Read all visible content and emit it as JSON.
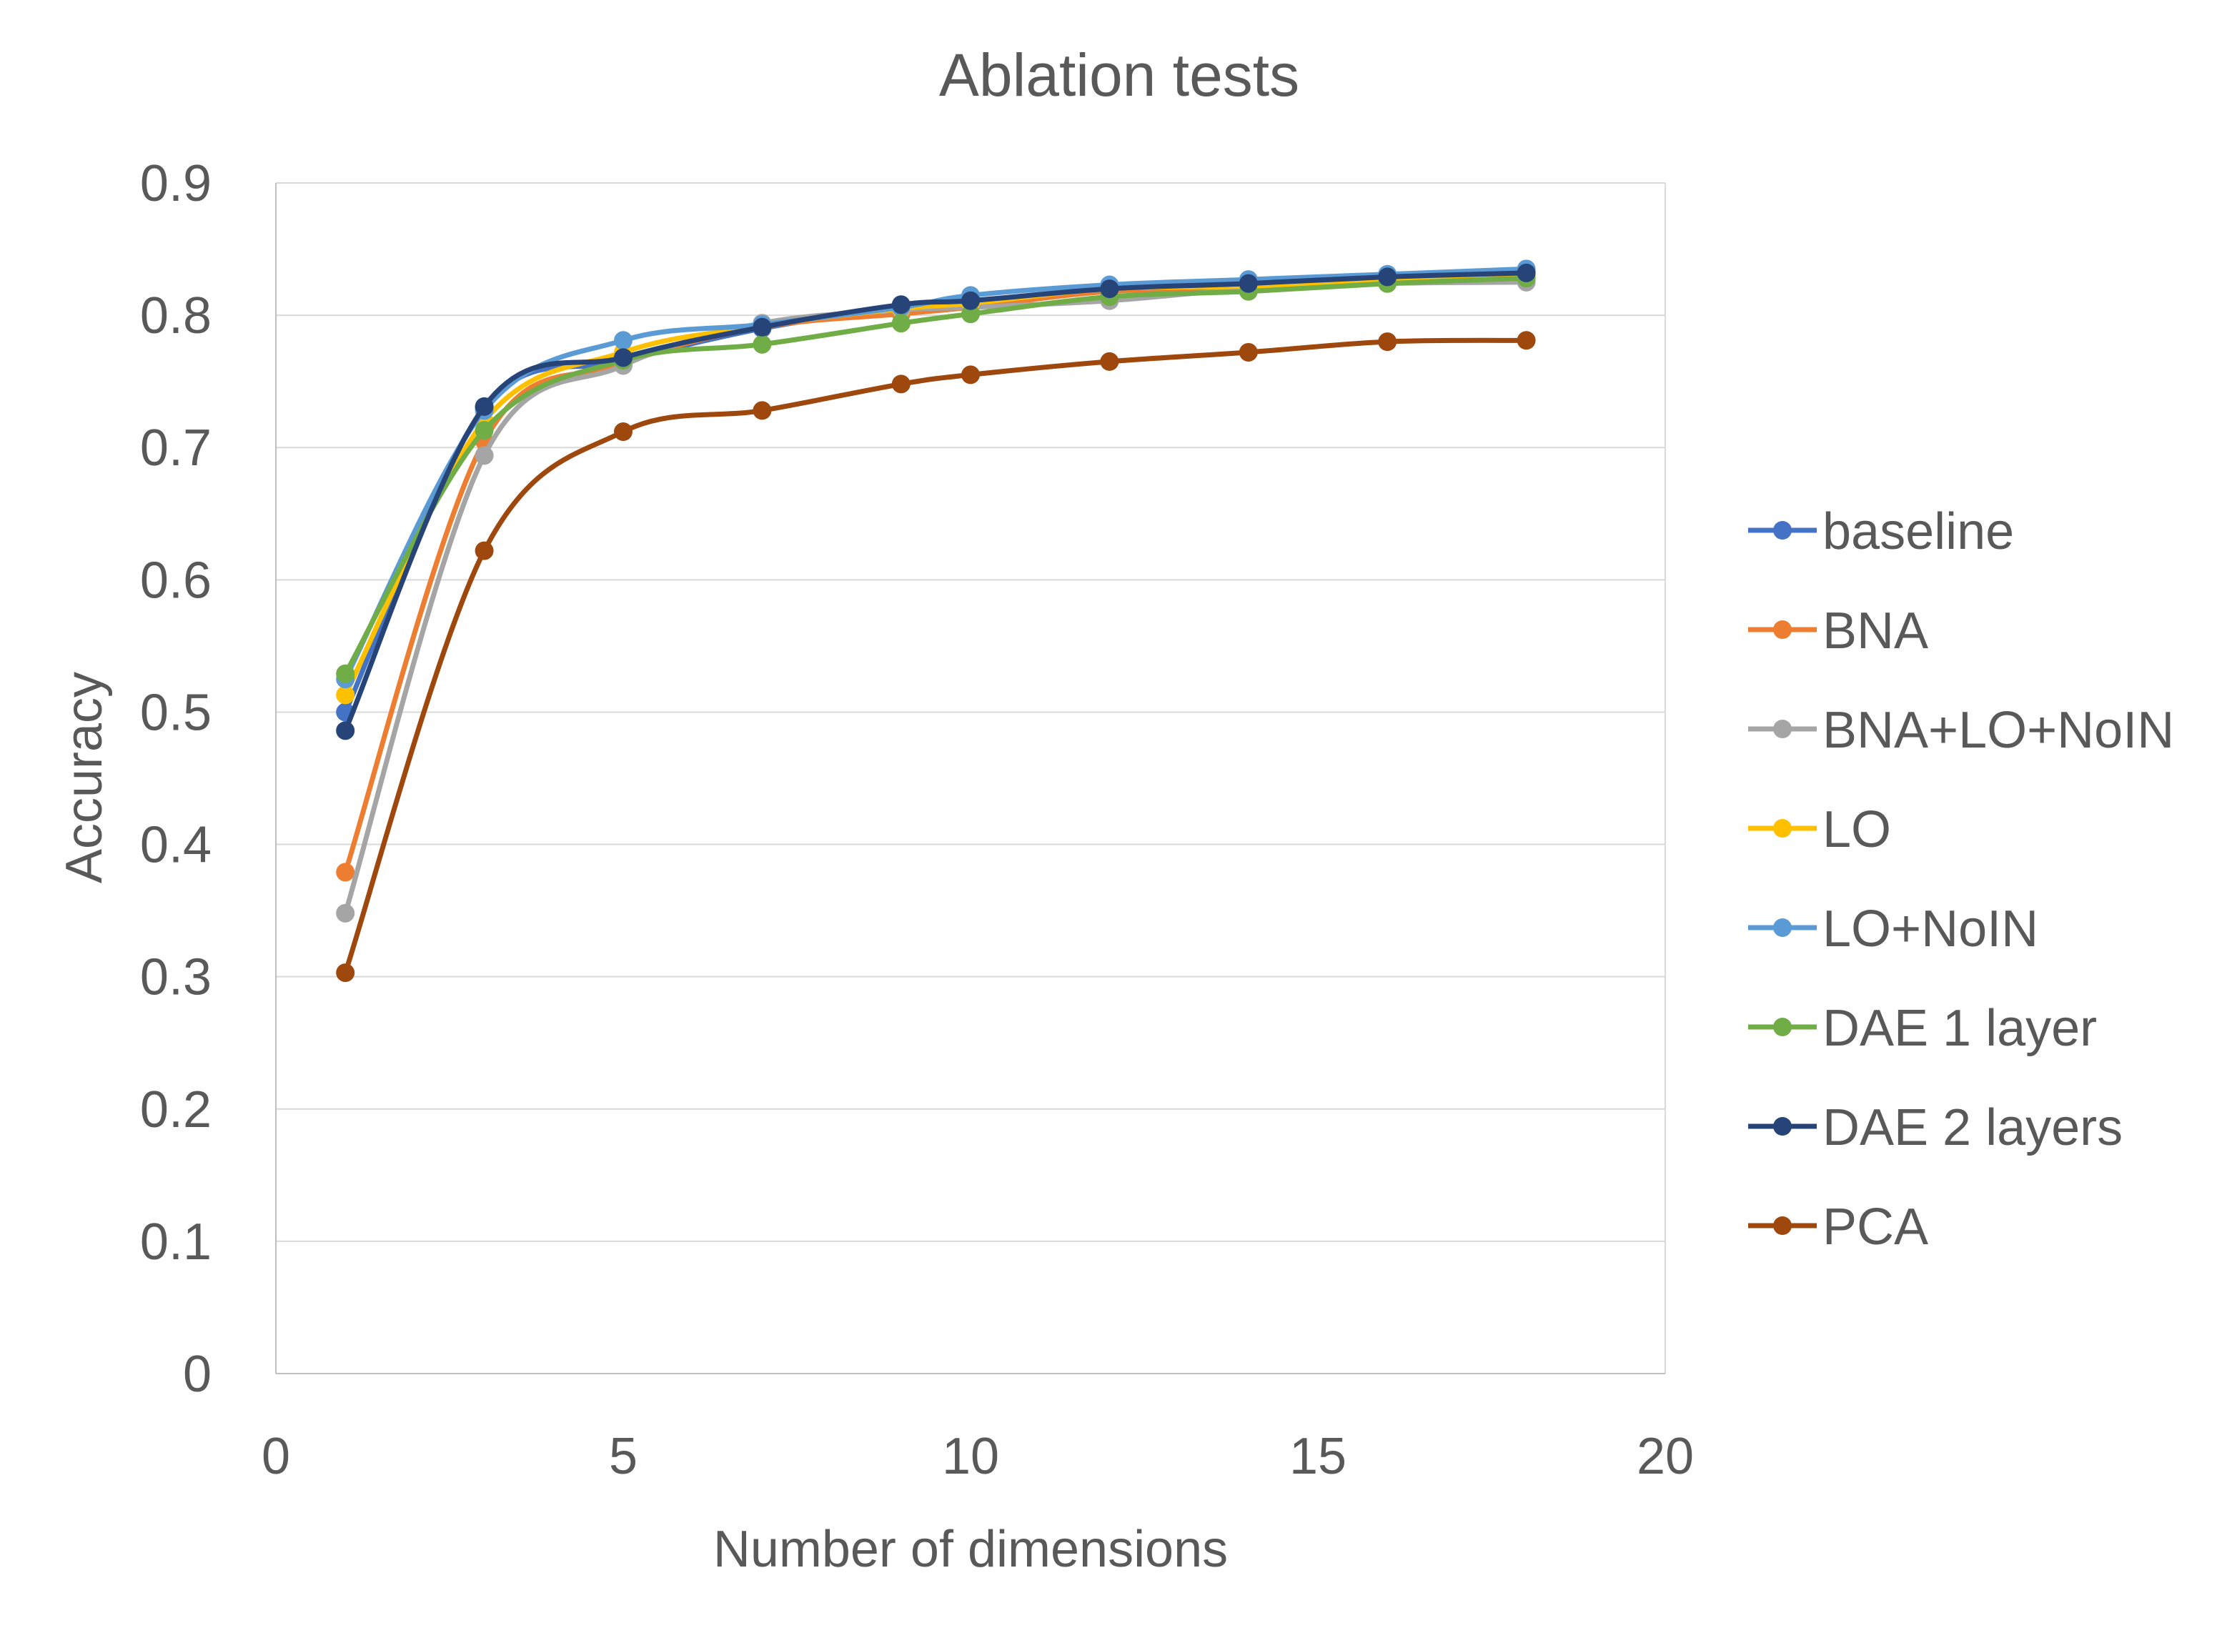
{
  "chart_data": {
    "type": "scatter",
    "title": "Ablation tests",
    "xlabel": "Number of dimensions",
    "ylabel": "Accuracy",
    "xlim": [
      0,
      20
    ],
    "ylim": [
      0,
      0.9
    ],
    "x_ticks": [
      "0",
      "5",
      "10",
      "15",
      "20"
    ],
    "y_ticks": [
      "0",
      "0.1",
      "0.2",
      "0.3",
      "0.4",
      "0.5",
      "0.6",
      "0.7",
      "0.8",
      "0.9"
    ],
    "grid": "horizontal",
    "legend_position": "right",
    "line_style": "smoothed lines with markers",
    "series": [
      {
        "name": "baseline",
        "color": "#4472C4",
        "x": [
          1,
          3,
          5,
          7,
          9,
          10,
          12,
          14,
          16,
          18
        ],
        "y": [
          0.5,
          0.73,
          0.765,
          0.79,
          0.806,
          0.81,
          0.82,
          0.823,
          0.828,
          0.832
        ]
      },
      {
        "name": "BNA",
        "color": "#ED7D31",
        "x": [
          1,
          3,
          5,
          7,
          9,
          10,
          12,
          14,
          16,
          18
        ],
        "y": [
          0.379,
          0.705,
          0.763,
          0.791,
          0.801,
          0.806,
          0.818,
          0.82,
          0.826,
          0.83
        ]
      },
      {
        "name": "BNA+LO+NoIN",
        "color": "#A5A5A5",
        "x": [
          1,
          3,
          5,
          7,
          9,
          10,
          12,
          14,
          16,
          18
        ],
        "y": [
          0.348,
          0.694,
          0.762,
          0.794,
          0.804,
          0.806,
          0.811,
          0.82,
          0.824,
          0.825
        ]
      },
      {
        "name": "LO",
        "color": "#FFC000",
        "x": [
          1,
          3,
          5,
          7,
          9,
          10,
          12,
          14,
          16,
          18
        ],
        "y": [
          0.513,
          0.72,
          0.772,
          0.792,
          0.805,
          0.809,
          0.82,
          0.822,
          0.827,
          0.83
        ]
      },
      {
        "name": "LO+NoIN",
        "color": "#5B9BD5",
        "x": [
          1,
          3,
          5,
          7,
          9,
          10,
          12,
          14,
          16,
          18
        ],
        "y": [
          0.525,
          0.728,
          0.781,
          0.793,
          0.806,
          0.815,
          0.823,
          0.827,
          0.831,
          0.835
        ]
      },
      {
        "name": "DAE 1 layer",
        "color": "#70AD47",
        "x": [
          1,
          3,
          5,
          7,
          9,
          10,
          12,
          14,
          16,
          18
        ],
        "y": [
          0.529,
          0.713,
          0.766,
          0.778,
          0.794,
          0.801,
          0.814,
          0.818,
          0.824,
          0.828
        ]
      },
      {
        "name": "DAE 2 layers",
        "color": "#264478",
        "x": [
          1,
          3,
          5,
          7,
          9,
          10,
          12,
          14,
          16,
          18
        ],
        "y": [
          0.486,
          0.731,
          0.768,
          0.791,
          0.808,
          0.811,
          0.82,
          0.824,
          0.829,
          0.832
        ]
      },
      {
        "name": "PCA",
        "color": "#9E480E",
        "x": [
          1,
          3,
          5,
          7,
          9,
          10,
          12,
          14,
          16,
          18
        ],
        "y": [
          0.303,
          0.622,
          0.712,
          0.728,
          0.748,
          0.755,
          0.765,
          0.772,
          0.78,
          0.781
        ]
      }
    ]
  }
}
